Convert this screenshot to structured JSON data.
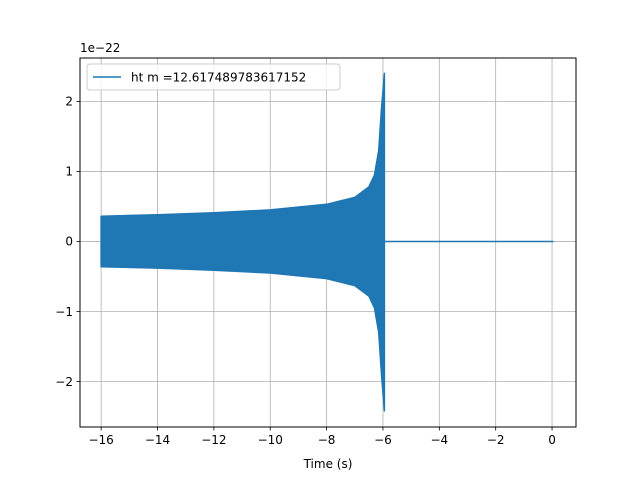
{
  "chart_data": {
    "type": "line",
    "xlabel": "Time (s)",
    "ylabel": "",
    "y_multiplier_label": "1e−22",
    "xlim": [
      -16.75,
      0.85
    ],
    "ylim": [
      -2.65,
      2.62
    ],
    "x_ticks": [
      -16,
      -14,
      -12,
      -10,
      -8,
      -6,
      -4,
      -2,
      0
    ],
    "x_tick_labels": [
      "−16",
      "−14",
      "−12",
      "−10",
      "−8",
      "−6",
      "−4",
      "−2",
      "0"
    ],
    "y_ticks": [
      -2,
      -1,
      0,
      1,
      2
    ],
    "y_tick_labels": [
      "−2",
      "−1",
      "0",
      "1",
      "2"
    ],
    "grid": true,
    "legend": {
      "position": "top-left"
    },
    "series": [
      {
        "name": "ht m =12.617489783617152",
        "color": "#1f77b4",
        "start": -16,
        "merger": -5.95,
        "end": 0.05,
        "envelope_upper": [
          [
            -16,
            0.36
          ],
          [
            -14,
            0.38
          ],
          [
            -12,
            0.41
          ],
          [
            -10,
            0.45
          ],
          [
            -8,
            0.53
          ],
          [
            -7,
            0.63
          ],
          [
            -6.5,
            0.78
          ],
          [
            -6.3,
            0.95
          ],
          [
            -6.15,
            1.3
          ],
          [
            -6.05,
            1.9
          ],
          [
            -5.95,
            2.4
          ]
        ],
        "envelope_lower": [
          [
            -16,
            -0.36
          ],
          [
            -14,
            -0.38
          ],
          [
            -12,
            -0.41
          ],
          [
            -10,
            -0.45
          ],
          [
            -8,
            -0.53
          ],
          [
            -7,
            -0.63
          ],
          [
            -6.5,
            -0.78
          ],
          [
            -6.3,
            -0.95
          ],
          [
            -6.15,
            -1.3
          ],
          [
            -6.05,
            -1.9
          ],
          [
            -5.95,
            -2.42
          ]
        ],
        "post_merger_value": 0
      }
    ]
  }
}
